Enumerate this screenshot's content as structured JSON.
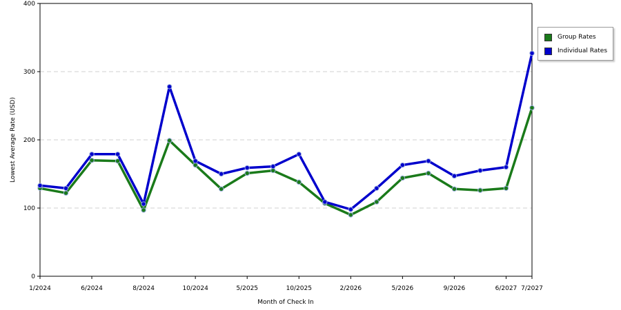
{
  "chart_data": {
    "type": "line",
    "xlabel": "Month of Check In",
    "ylabel": "Lowest Average Rate (USD)",
    "ylim": [
      0,
      400
    ],
    "yticks": [
      0,
      100,
      200,
      300,
      400
    ],
    "grid": "horizontal-dashed",
    "legend_position": "right",
    "x_tick_labels": [
      {
        "index": 0,
        "label": "1/2024"
      },
      {
        "index": 2,
        "label": "6/2024"
      },
      {
        "index": 4,
        "label": "8/2024"
      },
      {
        "index": 6,
        "label": "10/2024"
      },
      {
        "index": 8,
        "label": "5/2025"
      },
      {
        "index": 10,
        "label": "10/2025"
      },
      {
        "index": 12,
        "label": "2/2026"
      },
      {
        "index": 14,
        "label": "5/2026"
      },
      {
        "index": 16,
        "label": "9/2026"
      },
      {
        "index": 18,
        "label": "6/2027"
      },
      {
        "index": 19,
        "label": "7/2027"
      }
    ],
    "series": [
      {
        "name": "Group Rates",
        "color": "#1a7a1a",
        "values": [
          129,
          122,
          170,
          169,
          97,
          199,
          163,
          128,
          151,
          155,
          138,
          107,
          90,
          109,
          144,
          151,
          128,
          126,
          129,
          247
        ]
      },
      {
        "name": "Individual Rates",
        "color": "#0000cc",
        "values": [
          133,
          129,
          179,
          179,
          106,
          278,
          169,
          150,
          159,
          161,
          179,
          109,
          98,
          129,
          163,
          169,
          147,
          155,
          160,
          327
        ]
      }
    ]
  }
}
